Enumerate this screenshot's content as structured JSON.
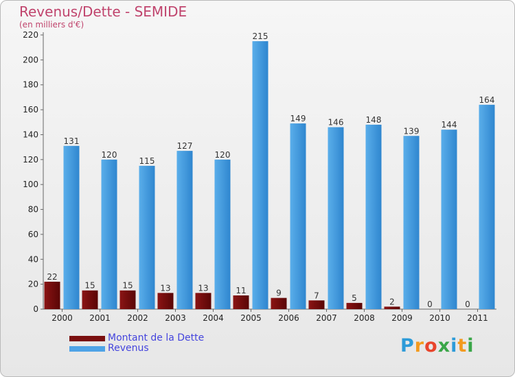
{
  "header": {
    "title": "Revenus/Dette - SEMIDE",
    "subtitle": "(en milliers d'€)"
  },
  "chart_data": {
    "type": "bar",
    "title": "Revenus/Dette - SEMIDE",
    "ylabel": "(en milliers d'€)",
    "xlabel": "",
    "ylim": [
      0,
      220
    ],
    "yticks": [
      0,
      20,
      40,
      60,
      80,
      100,
      120,
      140,
      160,
      180,
      200,
      220
    ],
    "categories": [
      "2000",
      "2001",
      "2002",
      "2003",
      "2004",
      "2005",
      "2006",
      "2007",
      "2008",
      "2009",
      "2010",
      "2011"
    ],
    "series": [
      {
        "name": "Montant de la Dette",
        "color": "#7a0f0f",
        "values": [
          22,
          15,
          15,
          13,
          13,
          11,
          9,
          7,
          5,
          2,
          0,
          0
        ]
      },
      {
        "name": "Revenus",
        "color": "#4fa3e6",
        "values": [
          131,
          120,
          115,
          127,
          120,
          215,
          149,
          146,
          148,
          139,
          144,
          164
        ]
      }
    ],
    "grid": false,
    "legend_position": "bottom-left"
  },
  "legend": {
    "items": [
      {
        "label": "Montant de la Dette",
        "color": "#7a0f0f"
      },
      {
        "label": "Revenus",
        "color": "#4fa3e6"
      }
    ]
  },
  "logo": {
    "letters": [
      "P",
      "r",
      "o",
      "x",
      "i",
      "t",
      "i"
    ],
    "colors": [
      "#2d9bd8",
      "#f39a1e",
      "#e8452c",
      "#3aa648",
      "#2d9bd8",
      "#f39a1e",
      "#3aa648"
    ]
  }
}
